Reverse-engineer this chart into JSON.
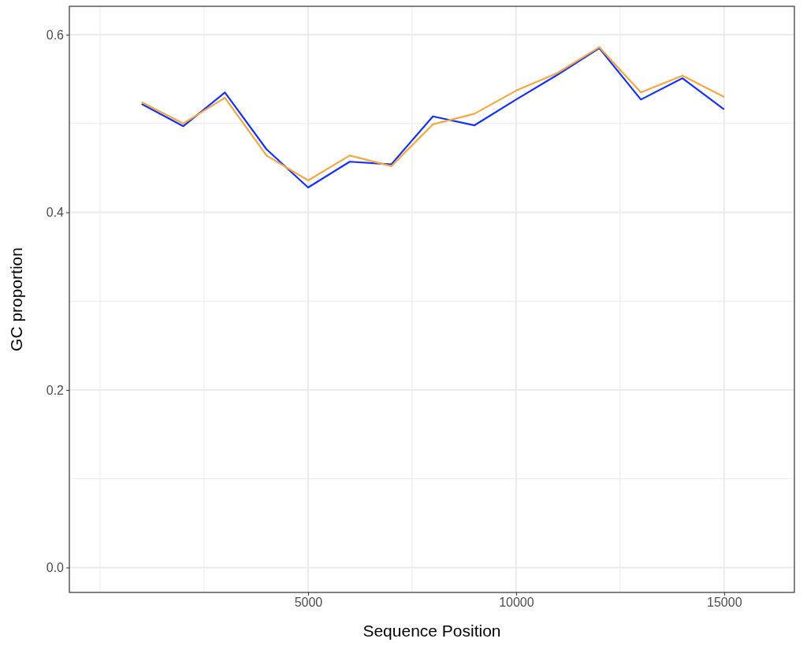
{
  "chart_data": {
    "type": "line",
    "xlabel": "Sequence Position",
    "ylabel": "GC proportion",
    "x": [
      1000,
      2000,
      3000,
      4000,
      5000,
      6000,
      7000,
      8000,
      9000,
      10000,
      11000,
      12000,
      13000,
      14000,
      15000
    ],
    "series": [
      {
        "color": "#1431ff",
        "values": [
          0.522,
          0.497,
          0.535,
          0.471,
          0.428,
          0.457,
          0.454,
          0.508,
          0.498,
          0.527,
          0.555,
          0.585,
          0.527,
          0.551,
          0.516
        ]
      },
      {
        "color": "#f5a742",
        "values": [
          0.524,
          0.5,
          0.529,
          0.464,
          0.436,
          0.464,
          0.452,
          0.499,
          0.511,
          0.537,
          0.557,
          0.586,
          0.535,
          0.554,
          0.53
        ]
      }
    ],
    "xlim": [
      -740,
      16690
    ],
    "ylim": [
      -0.028,
      0.632
    ],
    "xticks": [
      {
        "value": 0,
        "label": null
      },
      {
        "value": 2500,
        "label": null
      },
      5000,
      {
        "value": 7500,
        "label": null
      },
      10000,
      {
        "value": 12500,
        "label": null
      },
      15000
    ],
    "yticks": [
      {
        "value": 0,
        "label": "0.0"
      },
      {
        "value": 0.1,
        "label": null
      },
      {
        "value": 0.2,
        "label": "0.2"
      },
      {
        "value": 0.3,
        "label": null
      },
      {
        "value": 0.4,
        "label": "0.4"
      },
      {
        "value": 0.5,
        "label": null
      },
      {
        "value": 0.6,
        "label": "0.6"
      }
    ],
    "grid": true,
    "marker": "none",
    "line_style": "solid"
  }
}
